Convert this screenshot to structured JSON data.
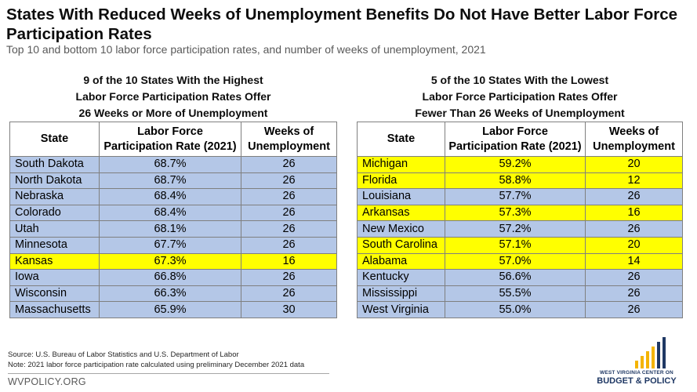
{
  "title": "States With Reduced Weeks of Unemployment Benefits Do Not Have Better Labor Force Participation Rates",
  "subtitle": "Top 10 and bottom 10 labor force participation rates, and number of weeks of unemployment, 2021",
  "left": {
    "caption": [
      "9 of the 10 States With the Highest",
      "Labor Force Participation Rates Offer",
      "26 Weeks or More of Unemployment"
    ],
    "headers": {
      "state": "State",
      "rate_line1": "Labor Force",
      "rate_line2": "Participation Rate (2021)",
      "weeks_line1": "Weeks of",
      "weeks_line2": "Unemployment"
    },
    "rows": [
      {
        "state": "South Dakota",
        "rate": "68.7%",
        "weeks": "26",
        "highlight": false
      },
      {
        "state": "North Dakota",
        "rate": "68.7%",
        "weeks": "26",
        "highlight": false
      },
      {
        "state": "Nebraska",
        "rate": "68.4%",
        "weeks": "26",
        "highlight": false
      },
      {
        "state": "Colorado",
        "rate": "68.4%",
        "weeks": "26",
        "highlight": false
      },
      {
        "state": "Utah",
        "rate": "68.1%",
        "weeks": "26",
        "highlight": false
      },
      {
        "state": "Minnesota",
        "rate": "67.7%",
        "weeks": "26",
        "highlight": false
      },
      {
        "state": "Kansas",
        "rate": "67.3%",
        "weeks": "16",
        "highlight": true
      },
      {
        "state": "Iowa",
        "rate": "66.8%",
        "weeks": "26",
        "highlight": false
      },
      {
        "state": "Wisconsin",
        "rate": "66.3%",
        "weeks": "26",
        "highlight": false
      },
      {
        "state": "Massachusetts",
        "rate": "65.9%",
        "weeks": "30",
        "highlight": false
      }
    ]
  },
  "right": {
    "caption": [
      "5 of the 10 States With the Lowest",
      "Labor Force Participation Rates Offer",
      "Fewer Than 26 Weeks of Unemployment"
    ],
    "headers": {
      "state": "State",
      "rate_line1": "Labor Force",
      "rate_line2": "Participation Rate (2021)",
      "weeks_line1": "Weeks of",
      "weeks_line2": "Unemployment"
    },
    "rows": [
      {
        "state": "Michigan",
        "rate": "59.2%",
        "weeks": "20",
        "highlight": true
      },
      {
        "state": "Florida",
        "rate": "58.8%",
        "weeks": "12",
        "highlight": true
      },
      {
        "state": "Louisiana",
        "rate": "57.7%",
        "weeks": "26",
        "highlight": false
      },
      {
        "state": "Arkansas",
        "rate": "57.3%",
        "weeks": "16",
        "highlight": true
      },
      {
        "state": "New Mexico",
        "rate": "57.2%",
        "weeks": "26",
        "highlight": false
      },
      {
        "state": "South Carolina",
        "rate": "57.1%",
        "weeks": "20",
        "highlight": true
      },
      {
        "state": "Alabama",
        "rate": "57.0%",
        "weeks": "14",
        "highlight": true
      },
      {
        "state": "Kentucky",
        "rate": "56.6%",
        "weeks": "26",
        "highlight": false
      },
      {
        "state": "Mississippi",
        "rate": "55.5%",
        "weeks": "26",
        "highlight": false
      },
      {
        "state": "West Virginia",
        "rate": "55.0%",
        "weeks": "26",
        "highlight": false
      }
    ]
  },
  "source": "Source: U.S. Bureau of Labor Statistics and U.S. Department of Labor",
  "note": "Note: 2021 labor force participation rate calculated using preliminary December 2021 data",
  "site": "WVPOLICY.ORG",
  "logo": {
    "line1": "WEST VIRGINIA CENTER ON",
    "line2": "BUDGET & POLICY",
    "icon": "bar-chart-logo-icon",
    "bar_colors": [
      "#f4b400",
      "#1f3864"
    ]
  },
  "colors": {
    "row_fill": "#b4c7e7",
    "highlight_fill": "#ffff00",
    "title": "#0d0d0d",
    "subtitle": "#595959"
  }
}
